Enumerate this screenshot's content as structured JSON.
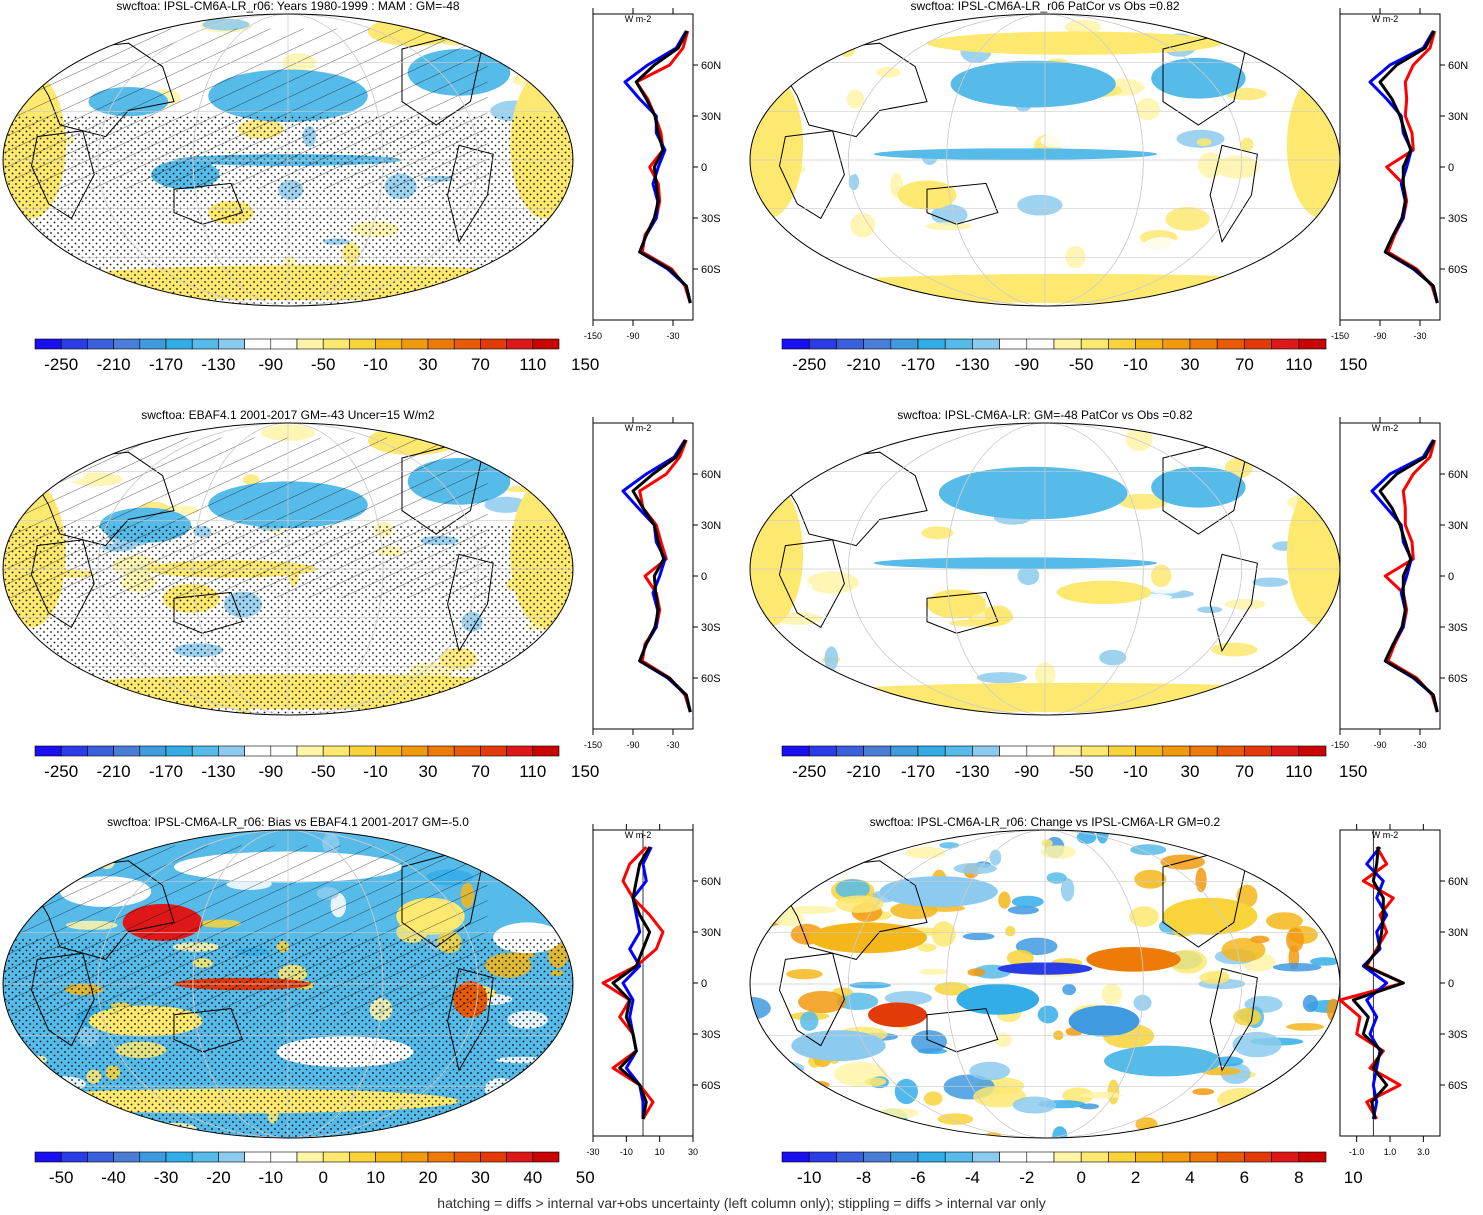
{
  "palette": {
    "full": [
      "#1a0ff0",
      "#2a3ce6",
      "#3b60dd",
      "#4a7ed6",
      "#3f9ae0",
      "#33ade8",
      "#56bbe9",
      "#8ccbef",
      "#ffffff",
      "#ffffff",
      "#fff4a8",
      "#fde870",
      "#f8d33a",
      "#f4b619",
      "#f29a0e",
      "#ee7a08",
      "#e95a06",
      "#e33a0a",
      "#de1818",
      "#c90404"
    ],
    "land": "#ffffff",
    "coast": "#000000",
    "grid": "#cccccc",
    "model_line": "#ff0000",
    "obs_line": "#0000ff",
    "mean_line": "#000000"
  },
  "footnote": "hatching = diffs > internal var+obs uncertainty (left column only); stippling = diffs > internal var only",
  "panels": [
    {
      "id": "model-climatology",
      "title": "swcftoa: IPSL-CM6A-LR_r06: Years 1980-1999 : MAM : GM=-48",
      "hatched": true,
      "stippled": true,
      "colorbar": [
        "-250",
        "-210",
        "-170",
        "-130",
        "-90",
        "-50",
        "-10",
        "30",
        "70",
        "110",
        "150"
      ],
      "profile_ticks": [
        "-150",
        "-90",
        "-30"
      ],
      "profile_unit": "W m-2",
      "lat_ticks": [
        "60N",
        "30N",
        "0",
        "30S",
        "60S"
      ],
      "xlim": [
        -150,
        0
      ],
      "lat": [
        80,
        70,
        60,
        50,
        40,
        30,
        20,
        10,
        0,
        -10,
        -20,
        -30,
        -40,
        -50,
        -60,
        -70,
        -80
      ],
      "series": [
        {
          "name": "model",
          "values": [
            -8,
            -15,
            -35,
            -85,
            -68,
            -57,
            -48,
            -45,
            -65,
            -52,
            -50,
            -55,
            -72,
            -76,
            -32,
            -12,
            -4
          ]
        },
        {
          "name": "obs",
          "values": [
            -10,
            -25,
            -68,
            -102,
            -80,
            -55,
            -55,
            -42,
            -52,
            -60,
            -53,
            -55,
            -70,
            -80,
            -38,
            -10,
            -4
          ]
        },
        {
          "name": "mean",
          "values": [
            -9,
            -22,
            -58,
            -85,
            -70,
            -57,
            -52,
            -45,
            -58,
            -55,
            -52,
            -58,
            -70,
            -80,
            -35,
            -10,
            -4
          ]
        }
      ]
    },
    {
      "id": "model-patcor",
      "title": "swcftoa: IPSL-CM6A-LR_r06 PatCor vs Obs =0.82",
      "hatched": false,
      "stippled": false,
      "colorbar": [
        "-250",
        "-210",
        "-170",
        "-130",
        "-90",
        "-50",
        "-10",
        "30",
        "70",
        "110",
        "150"
      ],
      "profile_ticks": [
        "-150",
        "-90",
        "-30"
      ],
      "profile_unit": "W m-2",
      "lat_ticks": [
        "60N",
        "30N",
        "0",
        "30S",
        "60S"
      ],
      "xlim": [
        -150,
        0
      ],
      "lat": [
        80,
        70,
        60,
        50,
        40,
        30,
        20,
        10,
        0,
        -10,
        -20,
        -30,
        -40,
        -50,
        -60,
        -70,
        -80
      ],
      "series": [
        {
          "name": "model",
          "values": [
            -8,
            -15,
            -40,
            -52,
            -50,
            -52,
            -42,
            -40,
            -80,
            -55,
            -50,
            -55,
            -68,
            -78,
            -35,
            -12,
            -4
          ]
        },
        {
          "name": "obs",
          "values": [
            -10,
            -25,
            -75,
            -105,
            -80,
            -58,
            -55,
            -43,
            -50,
            -58,
            -52,
            -55,
            -70,
            -82,
            -40,
            -10,
            -4
          ]
        },
        {
          "name": "mean",
          "values": [
            -9,
            -22,
            -65,
            -90,
            -72,
            -60,
            -52,
            -44,
            -55,
            -55,
            -52,
            -57,
            -70,
            -82,
            -38,
            -10,
            -4
          ]
        }
      ]
    },
    {
      "id": "obs-climatology",
      "title": "swcftoa: EBAF4.1 2001-2017 GM=-43 Uncer=15 W/m2",
      "hatched": true,
      "stippled": true,
      "colorbar": [
        "-250",
        "-210",
        "-170",
        "-130",
        "-90",
        "-50",
        "-10",
        "30",
        "70",
        "110",
        "150"
      ],
      "profile_ticks": [
        "-150",
        "-90",
        "-30"
      ],
      "profile_unit": "W m-2",
      "lat_ticks": [
        "60N",
        "30N",
        "0",
        "30S",
        "60S"
      ],
      "xlim": [
        -150,
        0
      ],
      "lat": [
        80,
        70,
        60,
        50,
        40,
        30,
        20,
        10,
        0,
        -10,
        -20,
        -30,
        -40,
        -50,
        -60,
        -70,
        -80
      ],
      "series": [
        {
          "name": "model",
          "values": [
            -10,
            -20,
            -40,
            -80,
            -75,
            -55,
            -48,
            -40,
            -72,
            -55,
            -50,
            -55,
            -72,
            -76,
            -35,
            -12,
            -4
          ]
        },
        {
          "name": "obs",
          "values": [
            -12,
            -28,
            -70,
            -105,
            -82,
            -58,
            -55,
            -42,
            -50,
            -60,
            -53,
            -55,
            -70,
            -80,
            -38,
            -10,
            -4
          ]
        },
        {
          "name": "mean",
          "values": [
            -11,
            -25,
            -60,
            -90,
            -75,
            -58,
            -52,
            -44,
            -58,
            -56,
            -52,
            -57,
            -70,
            -80,
            -36,
            -10,
            -4
          ]
        }
      ]
    },
    {
      "id": "ensemble-patcor",
      "title": "swcftoa: IPSL-CM6A-LR: GM=-48 PatCor vs Obs =0.82",
      "hatched": false,
      "stippled": false,
      "colorbar": [
        "-250",
        "-210",
        "-170",
        "-130",
        "-90",
        "-50",
        "-10",
        "30",
        "70",
        "110",
        "150"
      ],
      "profile_ticks": [
        "-150",
        "-90",
        "-30"
      ],
      "profile_unit": "W m-2",
      "lat_ticks": [
        "60N",
        "30N",
        "0",
        "30S",
        "60S"
      ],
      "xlim": [
        -150,
        0
      ],
      "lat": [
        80,
        70,
        60,
        50,
        40,
        30,
        20,
        10,
        0,
        -10,
        -20,
        -30,
        -40,
        -50,
        -60,
        -70,
        -80
      ],
      "series": [
        {
          "name": "model",
          "values": [
            -8,
            -15,
            -40,
            -55,
            -52,
            -52,
            -42,
            -40,
            -82,
            -55,
            -50,
            -55,
            -68,
            -78,
            -35,
            -12,
            -4
          ]
        },
        {
          "name": "obs",
          "values": [
            -10,
            -25,
            -75,
            -102,
            -80,
            -58,
            -55,
            -43,
            -50,
            -58,
            -52,
            -55,
            -70,
            -82,
            -40,
            -10,
            -4
          ]
        },
        {
          "name": "mean",
          "values": [
            -9,
            -22,
            -65,
            -90,
            -72,
            -60,
            -52,
            -44,
            -55,
            -55,
            -52,
            -57,
            -70,
            -82,
            -38,
            -10,
            -4
          ]
        }
      ]
    },
    {
      "id": "bias",
      "title": "swcftoa: IPSL-CM6A-LR_r06: Bias vs EBAF4.1 2001-2017 GM=-5.0",
      "hatched": true,
      "stippled": true,
      "colorbar": [
        "-50",
        "-40",
        "-30",
        "-20",
        "-10",
        "0",
        "10",
        "20",
        "30",
        "40",
        "50"
      ],
      "profile_ticks": [
        "-30",
        "-10",
        "10",
        "30"
      ],
      "profile_unit": "W m-2",
      "lat_ticks": [
        "60N",
        "30N",
        "0",
        "30S",
        "60S"
      ],
      "xlim": [
        -30,
        30
      ],
      "lat": [
        80,
        70,
        60,
        50,
        40,
        30,
        20,
        10,
        0,
        -10,
        -20,
        -30,
        -40,
        -50,
        -60,
        -70,
        -80
      ],
      "series": [
        {
          "name": "model",
          "values": [
            2,
            -8,
            -12,
            -6,
            4,
            12,
            8,
            -4,
            -24,
            -8,
            -14,
            -6,
            -4,
            -18,
            -2,
            6,
            0
          ]
        },
        {
          "name": "obs",
          "values": [
            5,
            0,
            2,
            -6,
            -4,
            -2,
            -8,
            -2,
            -12,
            -6,
            -8,
            -6,
            -4,
            -10,
            -2,
            0,
            0
          ]
        },
        {
          "name": "mean",
          "values": [
            4,
            -2,
            -4,
            -6,
            -2,
            4,
            0,
            -4,
            -18,
            -8,
            -10,
            -6,
            -4,
            -14,
            -2,
            2,
            0
          ]
        }
      ]
    },
    {
      "id": "change",
      "title": "swcftoa: IPSL-CM6A-LR_r06: Change vs IPSL-CM6A-LR GM=0.2",
      "hatched": false,
      "stippled": false,
      "colorbar": [
        "-10",
        "-8",
        "-6",
        "-4",
        "-2",
        "0",
        "2",
        "4",
        "6",
        "8",
        "10"
      ],
      "profile_ticks": [
        "-1.0",
        "1.0",
        "3.0"
      ],
      "profile_unit": "W m-2",
      "lat_ticks": [
        "60N",
        "30N",
        "0",
        "30S",
        "60S"
      ],
      "xlim": [
        -2,
        4
      ],
      "lat": [
        80,
        70,
        60,
        50,
        40,
        30,
        20,
        10,
        0,
        -10,
        -20,
        -30,
        -40,
        -50,
        -60,
        -70,
        -80
      ],
      "series": [
        {
          "name": "model",
          "values": [
            0.2,
            0.8,
            -0.6,
            1.2,
            0.4,
            0.8,
            0.2,
            -0.4,
            1.8,
            -2.0,
            -0.8,
            -1.0,
            0.6,
            -0.2,
            1.6,
            -0.4,
            0.2
          ]
        },
        {
          "name": "obs",
          "values": [
            0.4,
            -0.4,
            0.6,
            0.2,
            0.8,
            0.2,
            0.4,
            -0.6,
            0.8,
            -0.4,
            0.2,
            -0.2,
            0.4,
            0.2,
            0.0,
            0.2,
            0.0
          ]
        },
        {
          "name": "mean",
          "values": [
            0.3,
            0.2,
            0.0,
            0.6,
            0.6,
            0.5,
            0.3,
            -0.5,
            1.8,
            -1.2,
            -0.3,
            -0.6,
            0.5,
            0.0,
            0.8,
            -0.1,
            0.1
          ]
        }
      ]
    }
  ]
}
